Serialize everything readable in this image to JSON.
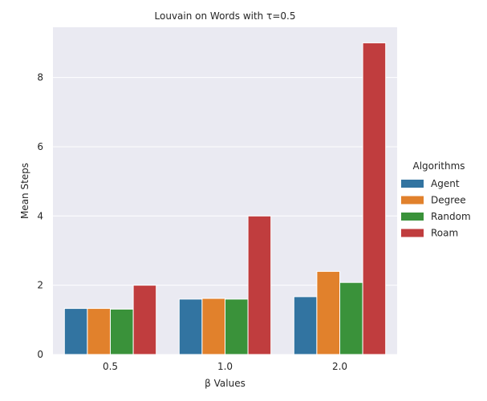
{
  "chart_data": {
    "type": "bar",
    "title": "Louvain on Words with τ=0.5",
    "xlabel": "β Values",
    "ylabel": "Mean Steps",
    "categories": [
      "0.5",
      "1.0",
      "2.0"
    ],
    "ylim": [
      0,
      9.45
    ],
    "yticks": [
      0,
      2,
      4,
      6,
      8
    ],
    "ytick_labels": [
      "0",
      "2",
      "4",
      "6",
      "8"
    ],
    "grid": true,
    "legend": {
      "title": "Algorithms",
      "placement": "center-right outside"
    },
    "series": [
      {
        "name": "Agent",
        "color": "#3274a1",
        "values": [
          1.33,
          1.6,
          1.67
        ]
      },
      {
        "name": "Degree",
        "color": "#e1812c",
        "values": [
          1.33,
          1.62,
          2.4
        ]
      },
      {
        "name": "Random",
        "color": "#3a923a",
        "values": [
          1.31,
          1.6,
          2.08
        ]
      },
      {
        "name": "Roam",
        "color": "#c03d3e",
        "values": [
          2.0,
          4.0,
          9.0
        ]
      }
    ]
  }
}
